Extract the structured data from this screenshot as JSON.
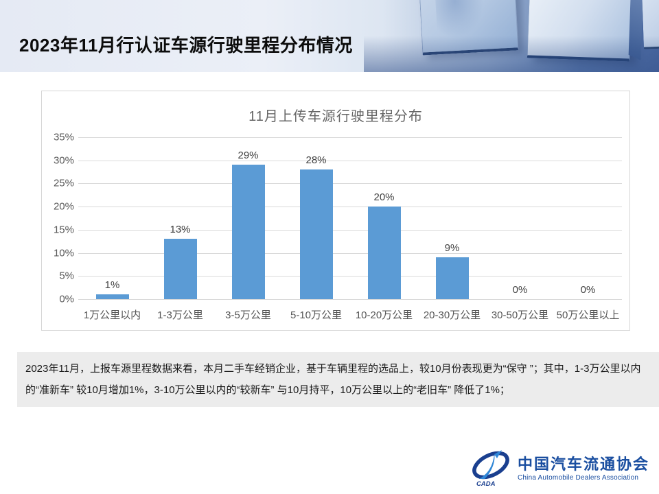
{
  "header": {
    "title": "2023年11月行认证车源行驶里程分布情况"
  },
  "chart_data": {
    "type": "bar",
    "title": "11月上传车源行驶里程分布",
    "categories": [
      "1万公里以内",
      "1-3万公里",
      "3-5万公里",
      "5-10万公里",
      "10-20万公里",
      "20-30万公里",
      "30-50万公里",
      "50万公里以上"
    ],
    "values": [
      1,
      13,
      29,
      28,
      20,
      9,
      0,
      0
    ],
    "value_labels": [
      "1%",
      "13%",
      "29%",
      "28%",
      "20%",
      "9%",
      "0%",
      "0%"
    ],
    "y_ticks": [
      "35%",
      "30%",
      "25%",
      "20%",
      "15%",
      "10%",
      "5%",
      "0%"
    ],
    "ylim": [
      0,
      35
    ],
    "xlabel": "",
    "ylabel": "",
    "grid": true,
    "legend": "none",
    "bar_color": "#5b9bd5"
  },
  "summary": {
    "text": "2023年11月，上报车源里程数据来看，本月二手车经销企业，基于车辆里程的选品上，较10月份表现更为“保守 ”；其中，1-3万公里以内的“准新车” 较10月增加1%，3-10万公里以内的“较新车” 与10月持平，10万公里以上的“老旧车” 降低了1%；"
  },
  "logo": {
    "icon_text": "CADA",
    "org_cn": "中国汽车流通协会",
    "org_en": "China Automobile Dealers Association",
    "brand_color": "#1a4ea0",
    "accent_color": "#2f86d6"
  }
}
